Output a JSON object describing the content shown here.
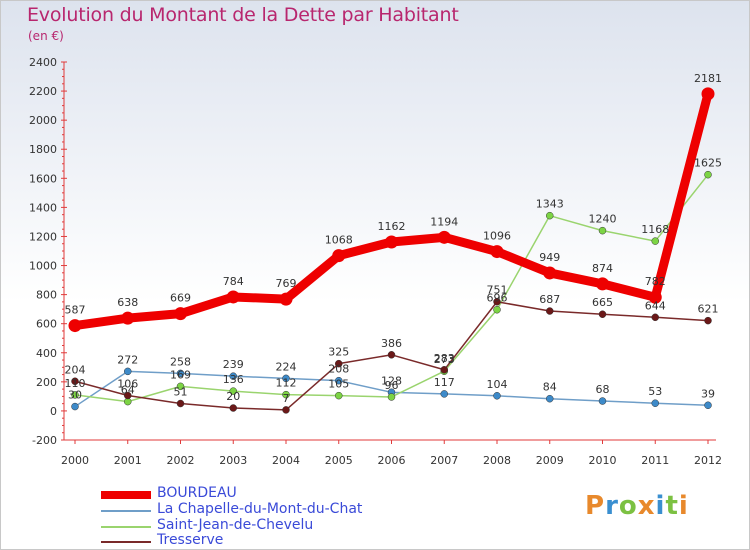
{
  "title": "Evolution du Montant de la Dette par Habitant",
  "unit": "(en €)",
  "logo": {
    "letters": [
      "P",
      "r",
      "o",
      "x",
      "i",
      "t",
      "i"
    ],
    "colors": [
      "#e8892c",
      "#3a8fd0",
      "#7cc142",
      "#e8892c",
      "#3a8fd0",
      "#7cc142",
      "#e8892c"
    ]
  },
  "chart_data": {
    "type": "line",
    "x": [
      "2000",
      "2001",
      "2002",
      "2003",
      "2004",
      "2005",
      "2006",
      "2007",
      "2008",
      "2009",
      "2010",
      "2011",
      "2012"
    ],
    "ylim": [
      -200,
      2400
    ],
    "yticks": [
      "-200",
      "0",
      "200",
      "400",
      "600",
      "800",
      "1000",
      "1200",
      "1400",
      "1600",
      "1800",
      "2000",
      "2200",
      "2400"
    ],
    "legend_position": "bottom-left",
    "series": [
      {
        "name": "BOURDEAU",
        "color": "#ee0000",
        "values": [
          587,
          638,
          669,
          784,
          769,
          1068,
          1162,
          1194,
          1096,
          949,
          874,
          782,
          2181
        ],
        "labels": [
          "587",
          "638",
          "669",
          "784",
          "769",
          "1068",
          "1162",
          "1194",
          "1096",
          "949",
          "874",
          "782",
          "2181"
        ]
      },
      {
        "name": "La Chapelle-du-Mont-du-Chat",
        "color": "#6f9ec8",
        "marker": "#3d8ac9",
        "values": [
          30,
          272,
          258,
          239,
          224,
          208,
          128,
          117,
          104,
          84,
          68,
          53,
          39
        ],
        "labels": [
          "30",
          "272",
          "258",
          "239",
          "224",
          "208",
          "128",
          "117",
          "104",
          "84",
          "68",
          "53",
          "39"
        ]
      },
      {
        "name": "Saint-Jean-de-Chevelu",
        "color": "#9ad46e",
        "marker": "#7cd444",
        "values": [
          110,
          64,
          169,
          136,
          112,
          105,
          96,
          273,
          696,
          1343,
          1240,
          1168,
          1625
        ],
        "labels": [
          "110",
          "64",
          "169",
          "136",
          "112",
          "105",
          "96",
          "273",
          "696",
          "1343",
          "1240",
          "1168",
          "1625"
        ]
      },
      {
        "name": "Tresserve",
        "color": "#7a2a2a",
        "marker": "#6b1818",
        "values": [
          204,
          106,
          51,
          20,
          7,
          325,
          386,
          283,
          751,
          687,
          665,
          644,
          621
        ],
        "labels": [
          "204",
          "106",
          "51",
          "20",
          "7",
          "325",
          "386",
          "283",
          "751",
          "687",
          "665",
          "644",
          "621"
        ]
      }
    ]
  }
}
